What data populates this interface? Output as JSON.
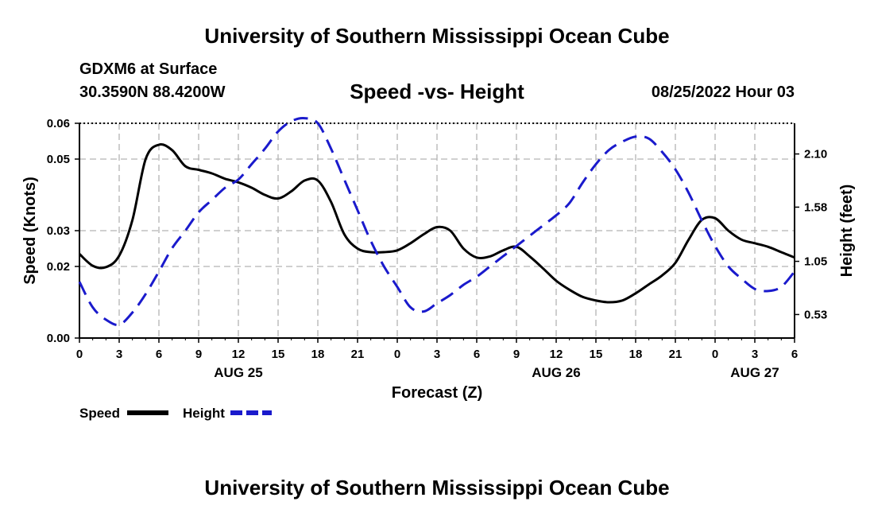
{
  "header": {
    "title": "University of Southern Mississippi Ocean Cube",
    "station": "GDXM6 at Surface",
    "coords": "30.3590N  88.4200W",
    "date": "08/25/2022 Hour 03"
  },
  "footer": {
    "title": "University of Southern Mississippi Ocean Cube"
  },
  "chart_data": {
    "type": "line",
    "title": "Speed -vs- Height",
    "xlabel": "Forecast (Z)",
    "ylabel": "Speed (Knots)",
    "y2label": "Height (feet)",
    "ylim": [
      0,
      0.06
    ],
    "y2lim": [
      0.3,
      2.4
    ],
    "xlim": [
      0,
      54
    ],
    "grid": true,
    "x_ticks": [
      0,
      3,
      6,
      9,
      12,
      15,
      18,
      21,
      24,
      27,
      30,
      33,
      36,
      39,
      42,
      45,
      48,
      51,
      54
    ],
    "x_tick_labels": [
      "0",
      "3",
      "6",
      "9",
      "12",
      "15",
      "18",
      "21",
      "0",
      "3",
      "6",
      "9",
      "12",
      "15",
      "18",
      "21",
      "0",
      "3",
      "6"
    ],
    "date_labels": [
      {
        "x": 12,
        "label": "AUG 25"
      },
      {
        "x": 36,
        "label": "AUG 26"
      },
      {
        "x": 51,
        "label": "AUG 27"
      }
    ],
    "y_ticks": [
      0,
      0.02,
      0.03,
      0.05,
      0.06
    ],
    "y_tick_labels": [
      "0.00",
      "0.02",
      "0.03",
      "0.05",
      "0.06"
    ],
    "y2_ticks": [
      0.53,
      1.05,
      1.58,
      2.1
    ],
    "y2_tick_labels": [
      "0.53",
      "1.05",
      "1.58",
      "2.10"
    ],
    "legend_placement": "bottom-left",
    "series": [
      {
        "name": "Speed",
        "axis": "left",
        "color": "#000000",
        "style": "solid",
        "x": [
          0,
          1,
          2,
          3,
          4,
          5,
          6,
          7,
          8,
          9,
          10,
          11,
          12,
          13,
          14,
          15,
          16,
          17,
          18,
          19,
          20,
          21,
          22,
          23,
          24,
          25,
          26,
          27,
          28,
          29,
          30,
          31,
          32,
          33,
          34,
          35,
          36,
          37,
          38,
          39,
          40,
          41,
          42,
          43,
          44,
          45,
          46,
          47,
          48,
          49,
          50,
          51,
          52,
          53,
          54
        ],
        "values": [
          0.0235,
          0.0202,
          0.0198,
          0.023,
          0.033,
          0.05,
          0.054,
          0.0525,
          0.048,
          0.047,
          0.046,
          0.0445,
          0.0435,
          0.042,
          0.04,
          0.039,
          0.041,
          0.044,
          0.044,
          0.038,
          0.029,
          0.025,
          0.024,
          0.024,
          0.0245,
          0.0265,
          0.029,
          0.031,
          0.03,
          0.025,
          0.0225,
          0.0228,
          0.0245,
          0.0255,
          0.0228,
          0.0195,
          0.016,
          0.0135,
          0.0115,
          0.0105,
          0.01,
          0.0105,
          0.0125,
          0.015,
          0.0175,
          0.021,
          0.0275,
          0.033,
          0.0335,
          0.03,
          0.0275,
          0.0265,
          0.0255,
          0.024,
          0.0225
        ]
      },
      {
        "name": "Height",
        "axis": "right",
        "color": "#1a1acc",
        "style": "dashed",
        "x": [
          0,
          1,
          2,
          3,
          4,
          5,
          6,
          7,
          8,
          9,
          10,
          11,
          12,
          13,
          14,
          15,
          16,
          17,
          18,
          19,
          20,
          21,
          22,
          23,
          24,
          25,
          26,
          27,
          28,
          29,
          30,
          31,
          32,
          33,
          34,
          35,
          36,
          37,
          38,
          39,
          40,
          41,
          42,
          43,
          44,
          45,
          46,
          47,
          48,
          49,
          50,
          51,
          52,
          53,
          54
        ],
        "values": [
          0.85,
          0.6,
          0.48,
          0.43,
          0.55,
          0.73,
          0.95,
          1.18,
          1.35,
          1.53,
          1.65,
          1.77,
          1.85,
          2.0,
          2.15,
          2.32,
          2.42,
          2.45,
          2.4,
          2.15,
          1.85,
          1.55,
          1.25,
          1.0,
          0.8,
          0.6,
          0.56,
          0.64,
          0.72,
          0.82,
          0.9,
          1.0,
          1.1,
          1.2,
          1.3,
          1.4,
          1.5,
          1.62,
          1.82,
          2.0,
          2.14,
          2.22,
          2.27,
          2.25,
          2.12,
          1.95,
          1.72,
          1.45,
          1.2,
          1.0,
          0.88,
          0.78,
          0.76,
          0.8,
          0.95
        ]
      }
    ]
  }
}
